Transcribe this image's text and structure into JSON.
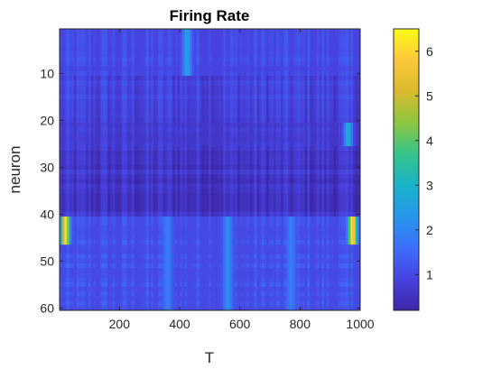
{
  "chart_data": {
    "type": "heatmap",
    "title": "Firing Rate",
    "xlabel": "T",
    "ylabel": "neuron",
    "xlim": [
      1,
      1000
    ],
    "ylim": [
      1,
      60
    ],
    "y_reversed": true,
    "x_ticks": [
      200,
      400,
      600,
      800,
      1000
    ],
    "y_ticks": [
      10,
      20,
      30,
      40,
      50,
      60
    ],
    "x_tick_labels": [
      "200",
      "400",
      "600",
      "800",
      "1000"
    ],
    "y_tick_labels": [
      "10",
      "20",
      "30",
      "40",
      "50",
      "60"
    ],
    "colorbar": {
      "min": 0.2,
      "max": 6.5,
      "ticks": [
        1,
        2,
        3,
        4,
        5,
        6
      ],
      "tick_labels": [
        "1",
        "2",
        "3",
        "4",
        "5",
        "6"
      ],
      "colormap": "parula"
    },
    "colormap_stops": [
      "#3e26a8",
      "#4743e0",
      "#3d6ffa",
      "#2797eb",
      "#18b3c8",
      "#35c38b",
      "#8cc640",
      "#d9ba2c",
      "#fdc73c",
      "#f9fb15"
    ],
    "neuron_groups": [
      {
        "neurons": [
          1,
          20
        ],
        "base_rate": 0.9
      },
      {
        "neurons": [
          21,
          40
        ],
        "base_rate": 0.6
      },
      {
        "neurons": [
          41,
          60
        ],
        "base_rate": 1.0
      }
    ],
    "hotspots": [
      {
        "neurons": [
          41,
          46
        ],
        "time": 20,
        "rate": 6.0
      },
      {
        "neurons": [
          41,
          46
        ],
        "time": 975,
        "rate": 6.2
      },
      {
        "neurons": [
          21,
          25
        ],
        "time": 960,
        "rate": 3.0
      },
      {
        "neurons": [
          1,
          10
        ],
        "time": 425,
        "rate": 2.6
      },
      {
        "neurons": [
          41,
          60
        ],
        "time": 560,
        "rate": 2.2
      },
      {
        "neurons": [
          41,
          60
        ],
        "time": 360,
        "rate": 1.9
      },
      {
        "neurons": [
          41,
          60
        ],
        "time": 770,
        "rate": 1.9
      }
    ]
  }
}
